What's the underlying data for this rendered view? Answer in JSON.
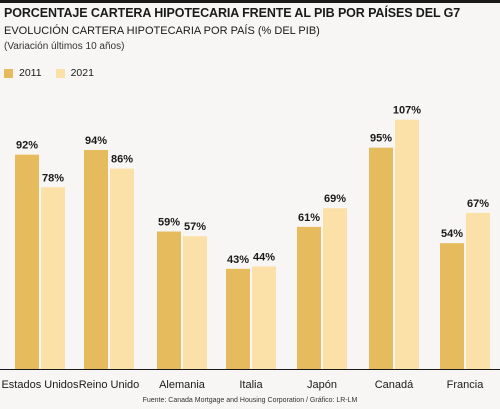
{
  "chart_data": {
    "type": "bar",
    "title": "PORCENTAJE CARTERA HIPOTECARIA FRENTE AL PIB POR PAÍSES DEL G7",
    "subtitle": "EVOLUCIÓN CARTERA HIPOTECARIA POR PAÍS (% DEL PIB)",
    "note": "(Variación últimos 10 años)",
    "categories": [
      "Estados Unidos",
      "Reino Unido",
      "Alemania",
      "Italia",
      "Japón",
      "Canadá",
      "Francia"
    ],
    "series": [
      {
        "name": "2011",
        "color": "#e6bb5e",
        "values": [
          92,
          94,
          59,
          43,
          61,
          95,
          54
        ],
        "labels": [
          "92%",
          "94%",
          "59%",
          "43%",
          "61%",
          "95%",
          "54%"
        ]
      },
      {
        "name": "2021",
        "color": "#fbe0a8",
        "values": [
          78,
          86,
          57,
          44,
          69,
          107,
          67
        ],
        "labels": [
          "78%",
          "86%",
          "57%",
          "44%",
          "69%",
          "107%",
          "67%"
        ]
      }
    ],
    "ylim": [
      0,
      110
    ],
    "grid": false,
    "legend": "top-left",
    "source": "Fuente: Canada Mortgage and Housing Corporation / Gráfico: LR-LM"
  }
}
